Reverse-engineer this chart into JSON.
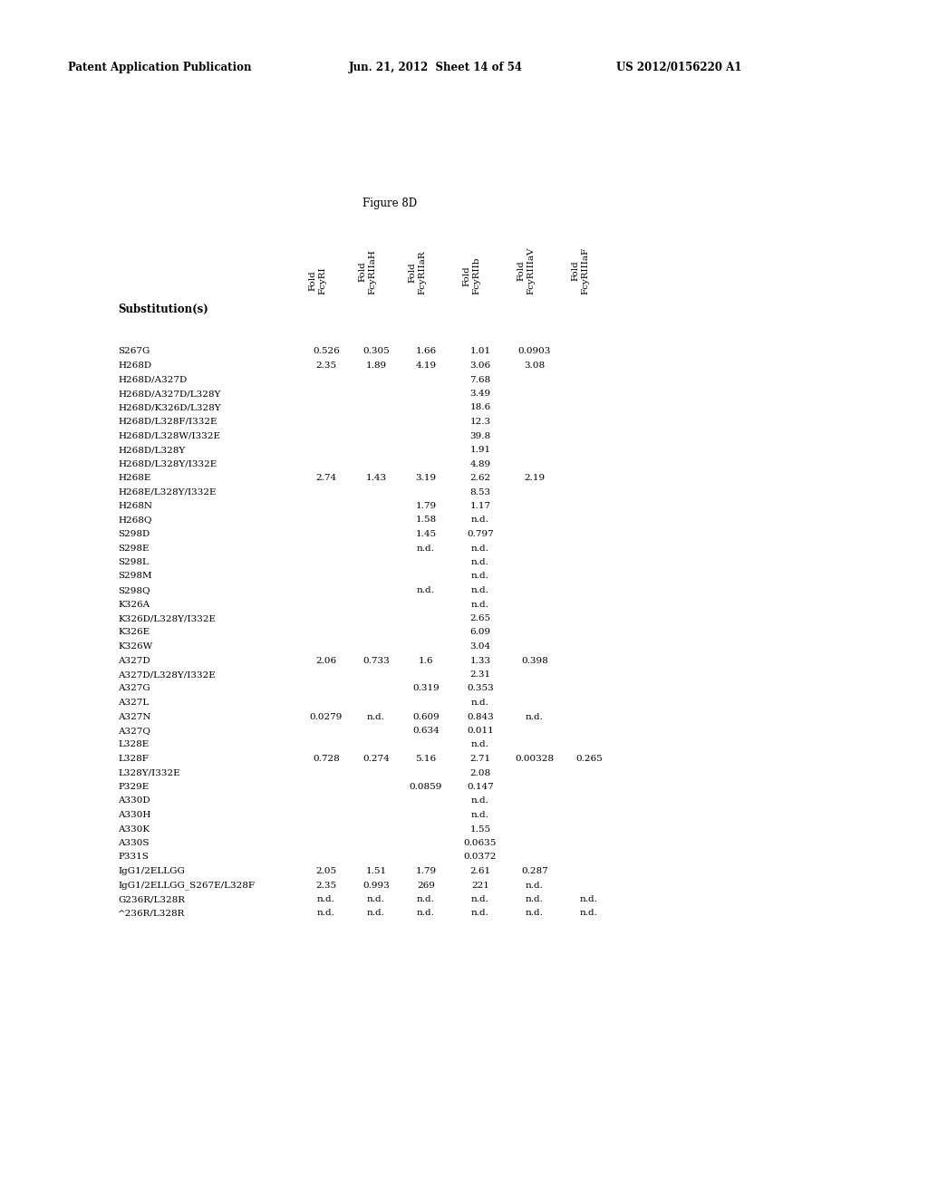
{
  "header_text_left": "Patent Application Publication",
  "header_text_mid": "Jun. 21, 2012  Sheet 14 of 54",
  "header_text_right": "US 2012/0156220 A1",
  "figure_title": "Figure 8D",
  "col_header": "Substitution(s)",
  "columns": [
    "Fold\nFcyRI",
    "Fold\nFcyRIIaH",
    "Fold\nFcyRIIaR",
    "Fold\nFcyRIIb",
    "Fold\nFcyRIIIaV",
    "Fold\nFcyRIIIaF"
  ],
  "rows": [
    [
      "S267G",
      "0.526",
      "0.305",
      "1.66",
      "1.01",
      "0.0903",
      ""
    ],
    [
      "H268D",
      "2.35",
      "1.89",
      "4.19",
      "3.06",
      "3.08",
      ""
    ],
    [
      "H268D/A327D",
      "",
      "",
      "",
      "7.68",
      "",
      ""
    ],
    [
      "H268D/A327D/L328Y",
      "",
      "",
      "",
      "3.49",
      "",
      ""
    ],
    [
      "H268D/K326D/L328Y",
      "",
      "",
      "",
      "18.6",
      "",
      ""
    ],
    [
      "H268D/L328F/I332E",
      "",
      "",
      "",
      "12.3",
      "",
      ""
    ],
    [
      "H268D/L328W/I332E",
      "",
      "",
      "",
      "39.8",
      "",
      ""
    ],
    [
      "H268D/L328Y",
      "",
      "",
      "",
      "1.91",
      "",
      ""
    ],
    [
      "H268D/L328Y/I332E",
      "",
      "",
      "",
      "4.89",
      "",
      ""
    ],
    [
      "H268E",
      "2.74",
      "1.43",
      "3.19",
      "2.62",
      "2.19",
      ""
    ],
    [
      "H268E/L328Y/I332E",
      "",
      "",
      "",
      "8.53",
      "",
      ""
    ],
    [
      "H268N",
      "",
      "",
      "1.79",
      "1.17",
      "",
      ""
    ],
    [
      "H268Q",
      "",
      "",
      "1.58",
      "n.d.",
      "",
      ""
    ],
    [
      "S298D",
      "",
      "",
      "1.45",
      "0.797",
      "",
      ""
    ],
    [
      "S298E",
      "",
      "",
      "n.d.",
      "n.d.",
      "",
      ""
    ],
    [
      "S298L",
      "",
      "",
      "",
      "n.d.",
      "",
      ""
    ],
    [
      "S298M",
      "",
      "",
      "",
      "n.d.",
      "",
      ""
    ],
    [
      "S298Q",
      "",
      "",
      "n.d.",
      "n.d.",
      "",
      ""
    ],
    [
      "K326A",
      "",
      "",
      "",
      "n.d.",
      "",
      ""
    ],
    [
      "K326D/L328Y/I332E",
      "",
      "",
      "",
      "2.65",
      "",
      ""
    ],
    [
      "K326E",
      "",
      "",
      "",
      "6.09",
      "",
      ""
    ],
    [
      "K326W",
      "",
      "",
      "",
      "3.04",
      "",
      ""
    ],
    [
      "A327D",
      "2.06",
      "0.733",
      "1.6",
      "1.33",
      "0.398",
      ""
    ],
    [
      "A327D/L328Y/I332E",
      "",
      "",
      "",
      "2.31",
      "",
      ""
    ],
    [
      "A327G",
      "",
      "",
      "0.319",
      "0.353",
      "",
      ""
    ],
    [
      "A327L",
      "",
      "",
      "",
      "n.d.",
      "",
      ""
    ],
    [
      "A327N",
      "0.0279",
      "n.d.",
      "0.609",
      "0.843",
      "n.d.",
      ""
    ],
    [
      "A327Q",
      "",
      "",
      "0.634",
      "0.011",
      "",
      ""
    ],
    [
      "L328E",
      "",
      "",
      "",
      "n.d.",
      "",
      ""
    ],
    [
      "L328F",
      "0.728",
      "0.274",
      "5.16",
      "2.71",
      "0.00328",
      "0.265"
    ],
    [
      "L328Y/I332E",
      "",
      "",
      "",
      "2.08",
      "",
      ""
    ],
    [
      "P329E",
      "",
      "",
      "0.0859",
      "0.147",
      "",
      ""
    ],
    [
      "A330D",
      "",
      "",
      "",
      "n.d.",
      "",
      ""
    ],
    [
      "A330H",
      "",
      "",
      "",
      "n.d.",
      "",
      ""
    ],
    [
      "A330K",
      "",
      "",
      "",
      "1.55",
      "",
      ""
    ],
    [
      "A330S",
      "",
      "",
      "",
      "0.0635",
      "",
      ""
    ],
    [
      "P331S",
      "",
      "",
      "",
      "0.0372",
      "",
      ""
    ],
    [
      "IgG1/2ELLGG",
      "2.05",
      "1.51",
      "1.79",
      "2.61",
      "0.287",
      ""
    ],
    [
      "IgG1/2ELLGG_S267E/L328F",
      "2.35",
      "0.993",
      "269",
      "221",
      "n.d.",
      ""
    ],
    [
      "G236R/L328R",
      "n.d.",
      "n.d.",
      "n.d.",
      "n.d.",
      "n.d.",
      "n.d."
    ],
    [
      "^236R/L328R",
      "n.d.",
      "n.d.",
      "n.d.",
      "n.d.",
      "n.d.",
      "n.d."
    ]
  ],
  "background_color": "#ffffff",
  "text_color": "#000000",
  "font_size_patent": 8.5,
  "font_size_title": 8.5,
  "font_size_col_header_label": 7.5,
  "font_size_subst_header": 8.5,
  "font_size_data": 7.5
}
